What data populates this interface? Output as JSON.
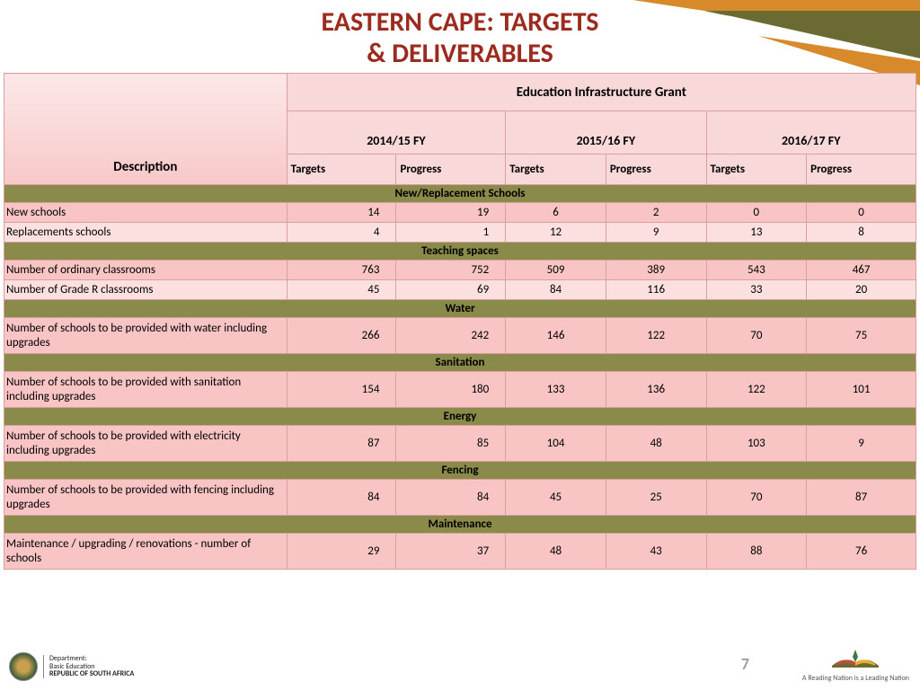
{
  "title_line1": "EASTERN CAPE: TARGETS",
  "title_line2": "& DELIVERABLES",
  "colors": {
    "title": "#9c2b1f",
    "header_bg_light": "#fce8e8",
    "header_bg": "#f8d8d8",
    "section_bg": "#8a8a4a",
    "row_bg": "#f8c4c4",
    "row_alt_bg": "#fce0e0",
    "border": "#d9a0a0",
    "accent_orange": "#d88a2a",
    "accent_olive": "#6a6a32",
    "page_num": "#9e9e9e"
  },
  "table": {
    "desc_header": "Description",
    "grant_header": "Education Infrastructure Grant",
    "fy_headers": [
      "2014/15 FY",
      "2015/16 FY",
      "2016/17 FY"
    ],
    "sub_headers": [
      "Targets",
      "Progress"
    ],
    "col_widths_percent": [
      31,
      12,
      12,
      11,
      11,
      11,
      12
    ],
    "sections": [
      {
        "name": "New/Replacement Schools",
        "rows": [
          {
            "desc": "New schools",
            "vals": [
              14,
              19,
              6,
              2,
              0,
              0
            ],
            "alt": false
          },
          {
            "desc": "Replacements schools",
            "vals": [
              4,
              1,
              12,
              9,
              13,
              8
            ],
            "alt": true
          }
        ]
      },
      {
        "name": "Teaching spaces",
        "rows": [
          {
            "desc": "Number of ordinary classrooms",
            "vals": [
              763,
              752,
              509,
              389,
              543,
              467
            ],
            "alt": false
          },
          {
            "desc": "Number of Grade R classrooms",
            "vals": [
              45,
              69,
              84,
              116,
              33,
              20
            ],
            "alt": true
          }
        ]
      },
      {
        "name": "Water",
        "rows": [
          {
            "desc": "Number of schools to be provided with water including upgrades",
            "vals": [
              266,
              242,
              146,
              122,
              70,
              75
            ],
            "alt": false,
            "tall": true
          }
        ]
      },
      {
        "name": "Sanitation",
        "rows": [
          {
            "desc": "Number of schools to be provided with sanitation including upgrades",
            "vals": [
              154,
              180,
              133,
              136,
              122,
              101
            ],
            "alt": false,
            "tall": true
          }
        ]
      },
      {
        "name": "Energy",
        "rows": [
          {
            "desc": "Number of schools to be provided with electricity including upgrades",
            "vals": [
              87,
              85,
              104,
              48,
              103,
              9
            ],
            "alt": false,
            "tall": true
          }
        ]
      },
      {
        "name": "Fencing",
        "rows": [
          {
            "desc": "Number of schools to be provided with fencing including upgrades",
            "vals": [
              84,
              84,
              45,
              25,
              70,
              87
            ],
            "alt": false,
            "tall": true
          }
        ]
      },
      {
        "name": "Maintenance",
        "rows": [
          {
            "desc": "Maintenance / upgrading / renovations - number of schools",
            "vals": [
              29,
              37,
              48,
              43,
              88,
              76
            ],
            "alt": false,
            "tall": true
          }
        ]
      }
    ]
  },
  "footer": {
    "dept_line1": "Department:",
    "dept_line2": "Basic Education",
    "dept_line3": "REPUBLIC OF SOUTH AFRICA",
    "page_number": "7",
    "slogan": "A Reading Nation is a Leading Nation"
  }
}
